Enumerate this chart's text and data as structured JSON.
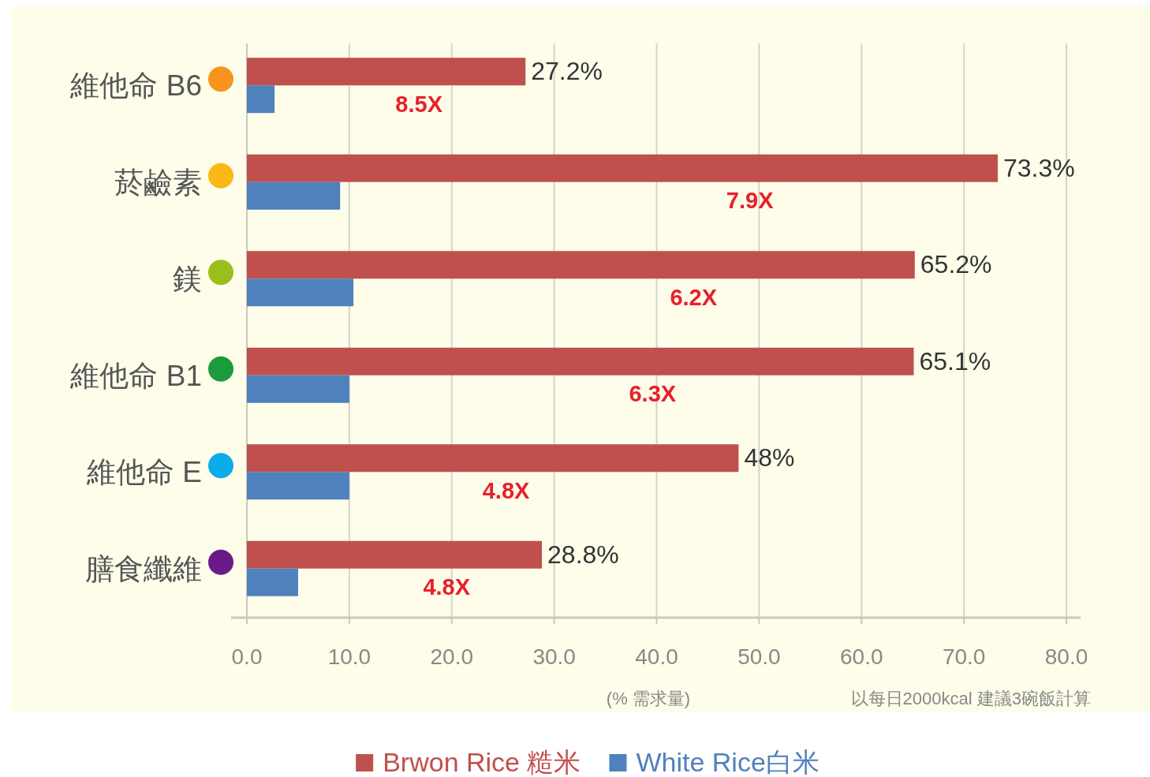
{
  "chart_data": {
    "type": "bar",
    "orientation": "horizontal",
    "categories": [
      "維他命 B6",
      "菸鹼素",
      "鎂",
      "維他命 B1",
      "維他命 E",
      "膳食纖維"
    ],
    "series": [
      {
        "name": "Brwon Rice 糙米",
        "color": "#c0504d",
        "values": [
          27.2,
          73.3,
          65.2,
          65.1,
          48,
          28.8
        ],
        "value_labels": [
          "27.2%",
          "73.3%",
          "65.2%",
          "65.1%",
          "48%",
          "28.8%"
        ]
      },
      {
        "name": "White Rice白米",
        "color": "#4f81bd",
        "values": [
          2.7,
          9.1,
          10.4,
          10.0,
          10.0,
          5.0
        ]
      }
    ],
    "xlim": [
      0,
      80
    ],
    "xticks": [
      {
        "value": 0,
        "label": "0.0"
      },
      {
        "value": 10,
        "label": "10.0"
      },
      {
        "value": 20,
        "label": "20.0"
      },
      {
        "value": 30,
        "label": "30.0"
      },
      {
        "value": 40,
        "label": "40.0"
      },
      {
        "value": 50,
        "label": "50.0"
      },
      {
        "value": 60,
        "label": "60.0"
      },
      {
        "value": 70,
        "label": "70.0"
      },
      {
        "value": 80,
        "label": "80.0"
      }
    ],
    "xlabel": "(% 需求量)",
    "annotations": [
      {
        "text": "8.5X",
        "x": 16.8,
        "y": "維他命 B6"
      },
      {
        "text": "7.9X",
        "x": 49.1,
        "y": "菸鹼素"
      },
      {
        "text": "6.2X",
        "x": 43.6,
        "y": "鎂"
      },
      {
        "text": "6.3X",
        "x": 39.6,
        "y": "維他命 B1"
      },
      {
        "text": "4.8X",
        "x": 25.3,
        "y": "維他命 E"
      },
      {
        "text": "4.8X",
        "x": 19.5,
        "y": "膳食纖維"
      },
      "以每日2000kcal 建議3碗飯計算"
    ],
    "grid": "x",
    "legend": "bottom"
  }
}
